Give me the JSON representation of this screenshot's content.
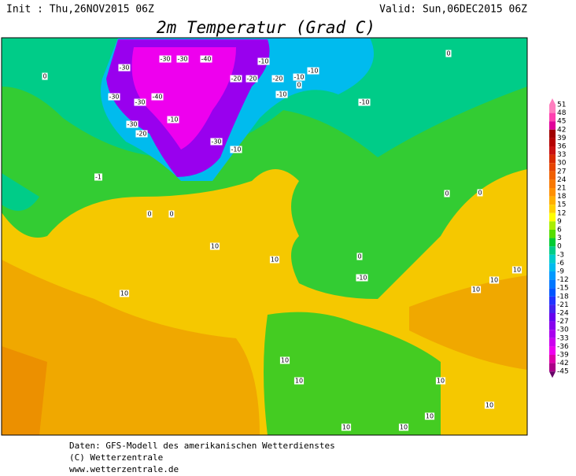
{
  "header": {
    "init": "Init : Thu,26NOV2015 06Z",
    "valid": "Valid: Sun,06DEC2015 06Z",
    "title": "2m Temperatur (Grad C)"
  },
  "colorbar": {
    "levels": [
      51,
      48,
      45,
      42,
      39,
      36,
      33,
      30,
      27,
      24,
      21,
      18,
      15,
      12,
      9,
      6,
      3,
      0,
      -3,
      -6,
      -9,
      -12,
      -15,
      -18,
      -21,
      -24,
      -27,
      -30,
      -33,
      -36,
      -39,
      -42,
      -45
    ],
    "colors": [
      "#ff7fbf",
      "#ff40b0",
      "#e0009a",
      "#a00000",
      "#b40000",
      "#c81010",
      "#d82a00",
      "#e64400",
      "#f06000",
      "#f87800",
      "#ff9000",
      "#ffb000",
      "#ffd000",
      "#ffff00",
      "#aaee00",
      "#55dd00",
      "#00cc33",
      "#00cc88",
      "#00cccc",
      "#00bbee",
      "#0099ff",
      "#0077ff",
      "#0055ff",
      "#2233ff",
      "#4422ee",
      "#6600ee",
      "#8800ee",
      "#aa00ee",
      "#cc00ee",
      "#ee00ee",
      "#dd00aa",
      "#aa0088",
      "#660066"
    ]
  },
  "map_labels": [
    "-30",
    "-30",
    "-30",
    "-40",
    "-30",
    "-20",
    "-10",
    "-20",
    "-10",
    "-10",
    "-30",
    "-40",
    "-30",
    "-20",
    "-10",
    "-30",
    "-10",
    "-20",
    "-10",
    "0",
    "0",
    "0",
    "0",
    "-10",
    "-1",
    "0",
    "0",
    "10",
    "10",
    "10",
    "10",
    "0",
    "-10",
    "0",
    "10",
    "10",
    "10",
    "10",
    "10",
    "10",
    "10",
    "10",
    "10"
  ],
  "footer": [
    "Daten: GFS-Modell des amerikanischen Wetterdienstes",
    "(C) Wetterzentrale",
    "www.wetterzentrale.de"
  ]
}
